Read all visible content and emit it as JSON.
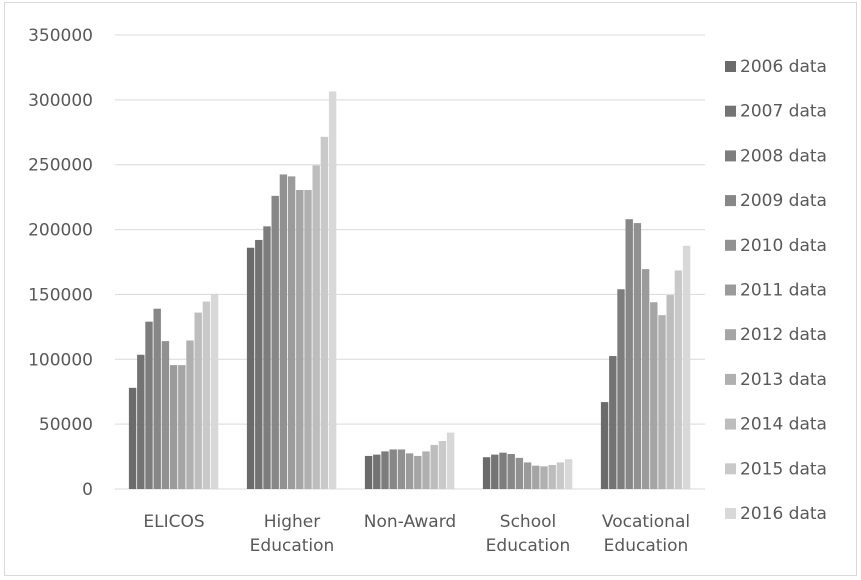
{
  "chart_data": {
    "type": "bar",
    "categories": [
      "ELICOS",
      "Higher Education",
      "Non-Award",
      "School Education",
      "Vocational Education"
    ],
    "category_label_lines": [
      [
        "ELICOS"
      ],
      [
        "Higher",
        "Education"
      ],
      [
        "Non-Award"
      ],
      [
        "School",
        "Education"
      ],
      [
        "Vocational",
        "Education"
      ]
    ],
    "series": [
      {
        "name": "2006 data",
        "color": "#6b6b6b",
        "values": [
          78000,
          186000,
          25500,
          24500,
          67000
        ]
      },
      {
        "name": "2007 data",
        "color": "#737373",
        "values": [
          103500,
          192000,
          26500,
          26500,
          102500
        ]
      },
      {
        "name": "2008 data",
        "color": "#7d7d7d",
        "values": [
          129000,
          202500,
          29000,
          28000,
          154000
        ]
      },
      {
        "name": "2009 data",
        "color": "#878787",
        "values": [
          139000,
          226000,
          30500,
          27000,
          208000
        ]
      },
      {
        "name": "2010 data",
        "color": "#919191",
        "values": [
          114000,
          242500,
          30500,
          24000,
          205000
        ]
      },
      {
        "name": "2011 data",
        "color": "#9b9b9b",
        "values": [
          95500,
          241000,
          27500,
          20500,
          169500
        ]
      },
      {
        "name": "2012 data",
        "color": "#a5a5a5",
        "values": [
          95500,
          230500,
          25500,
          18000,
          144000
        ]
      },
      {
        "name": "2013 data",
        "color": "#b0b0b0",
        "values": [
          114500,
          230500,
          29000,
          17500,
          134000
        ]
      },
      {
        "name": "2014 data",
        "color": "#bdbdbd",
        "values": [
          136000,
          249500,
          34000,
          18500,
          149500
        ]
      },
      {
        "name": "2015 data",
        "color": "#c9c9c9",
        "values": [
          144500,
          271500,
          37000,
          20500,
          168500
        ]
      },
      {
        "name": "2016 data",
        "color": "#d8d8d8",
        "values": [
          150500,
          306500,
          43500,
          23000,
          187500
        ]
      }
    ],
    "y_ticks": [
      "0",
      "50000",
      "100000",
      "150000",
      "200000",
      "250000",
      "300000",
      "350000"
    ],
    "ylim": [
      0,
      350000
    ],
    "title": "",
    "xlabel": "",
    "ylabel": "",
    "grid": true,
    "legend_position": "right",
    "gridline_color": "#d9d9d9",
    "text_color": "#595959"
  }
}
